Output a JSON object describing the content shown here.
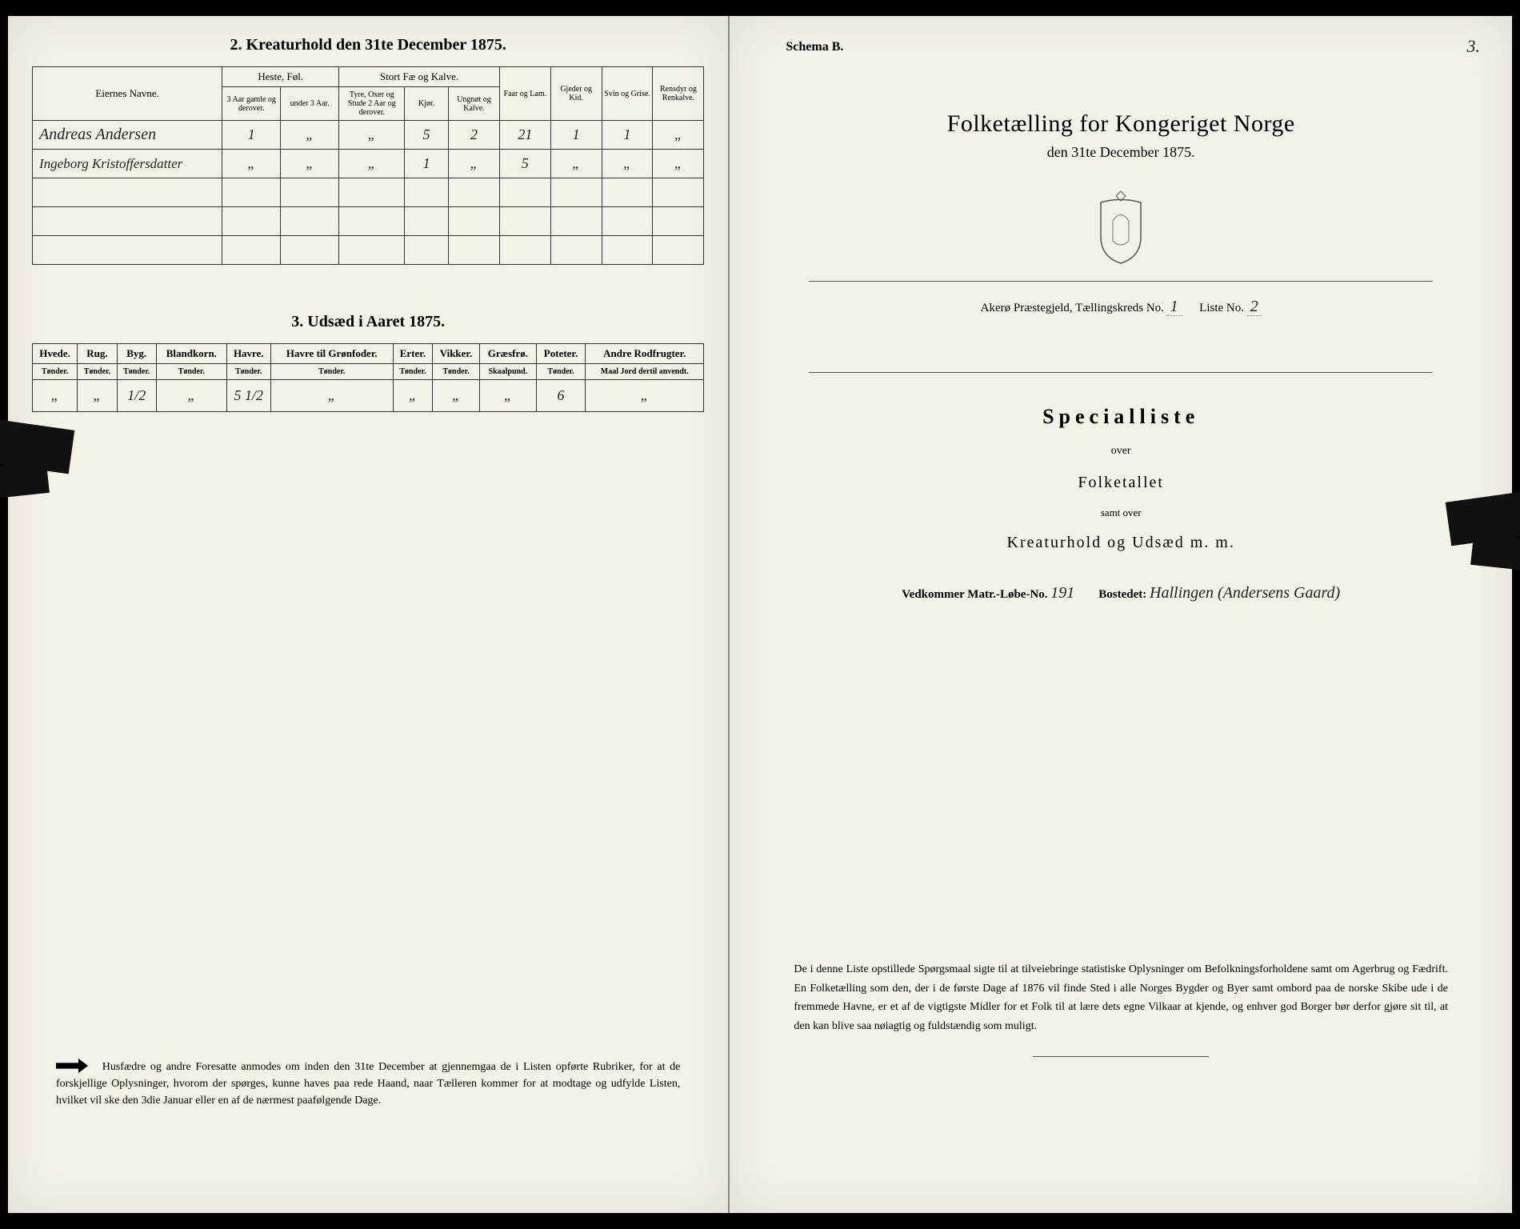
{
  "left": {
    "section2_title": "2.  Kreaturhold den 31te December 1875.",
    "table2": {
      "col_groups": {
        "name": "Eiernes Navne.",
        "horses": "Heste, Føl.",
        "cattle": "Stort Fæ og Kalve.",
        "sheep": "Faar og Lam.",
        "goat": "Gjeder og Kid.",
        "pig": "Svin og Grise.",
        "reindeer": "Rensdyr og Renkalve."
      },
      "sub": {
        "h1": "3 Aar gamle og derover.",
        "h2": "under 3 Aar.",
        "c1": "Tyre, Oxer og Stude 2 Aar og derover.",
        "c2": "Kjør.",
        "c3": "Ungnøt og Kalve."
      },
      "rows": [
        {
          "name": "Andreas Andersen",
          "h1": "1",
          "h2": "„",
          "c1": "„",
          "c2": "5",
          "c3": "2",
          "sheep": "21",
          "goat": "1",
          "pig": "1",
          "rein": "„"
        },
        {
          "name": "Ingeborg Kristoffersdatter",
          "h1": "„",
          "h2": "„",
          "c1": "„",
          "c2": "1",
          "c3": "„",
          "sheep": "5",
          "goat": "„",
          "pig": "„",
          "rein": "„"
        }
      ]
    },
    "section3_title": "3.  Udsæd i Aaret 1875.",
    "table3": {
      "headers": [
        "Hvede.",
        "Rug.",
        "Byg.",
        "Blandkorn.",
        "Havre.",
        "Havre til Grønfoder.",
        "Erter.",
        "Vikker.",
        "Græsfrø.",
        "Poteter.",
        "Andre Rodfrugter."
      ],
      "units": [
        "Tønder.",
        "Tønder.",
        "Tønder.",
        "Tønder.",
        "Tønder.",
        "Tønder.",
        "Tønder.",
        "Tønder.",
        "Skaalpund.",
        "Tønder.",
        "Maal Jord dertil anvendt."
      ],
      "values": [
        "„",
        "„",
        "1/2",
        "„",
        "5 1/2",
        "„",
        "„",
        "„",
        "„",
        "6",
        "„"
      ]
    },
    "footnote": "Husfædre og andre Foresatte anmodes om inden den 31te December at gjennemgaa de i Listen opførte Rubriker, for at de forskjellige Oplysninger, hvorom der spørges, kunne haves paa rede Haand, naar Tælleren kommer for at modtage og udfylde Listen, hvilket vil ske den 3die Januar eller en af de nærmest paafølgende Dage."
  },
  "right": {
    "schema": "Schema B.",
    "page_num": "3.",
    "main_title": "Folketælling for Kongeriget Norge",
    "sub_date": "den 31te December 1875.",
    "district_prefix": "Akerø  Præstegjeld,  Tællingskreds No.",
    "district_no": "1",
    "liste_label": "Liste No.",
    "liste_no": "2",
    "special": "Specialliste",
    "over": "over",
    "folket": "Folketallet",
    "samt": "samt over",
    "kreat": "Kreaturhold og Udsæd m. m.",
    "matr_label": "Vedkommer Matr.-Løbe-No.",
    "matr_no": "191",
    "bosted_label": "Bostedet:",
    "bosted_val": "Hallingen (Andersens Gaard)",
    "footnote": "De i denne Liste opstillede Spørgsmaal sigte til at tilveiebringe statistiske Oplysninger om Befolkningsforholdene samt om Agerbrug og Fædrift.  En Folketælling som den, der i de første Dage af 1876 vil finde Sted i alle Norges Bygder og Byer samt ombord paa de norske Skibe ude i de fremmede Havne, er et af de vigtigste Midler for et Folk til at lære dets egne Vilkaar at kjende, og enhver god Borger bør derfor gjøre sit til, at den kan blive saa nøiagtig og fuldstændig som muligt."
  }
}
